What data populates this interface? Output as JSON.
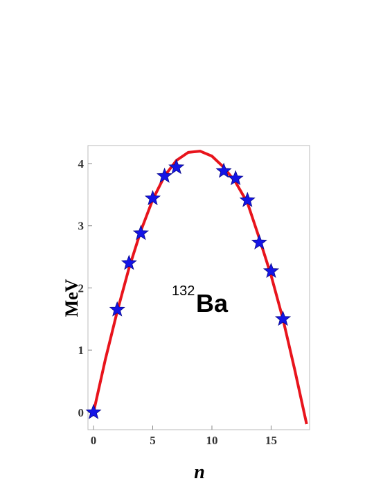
{
  "chart_data": {
    "type": "line",
    "x_label": "n",
    "y_label": "MeV",
    "annotation": {
      "superscript": "132",
      "text": "Ba"
    },
    "xlim": [
      -0.47,
      18.25
    ],
    "ylim": [
      -0.28,
      4.29
    ],
    "xticks": [
      0,
      5,
      10,
      15
    ],
    "yticks": [
      0,
      1,
      2,
      3,
      4
    ],
    "series": [
      {
        "type": "line",
        "color": "#e8141c",
        "x": [
          0,
          1,
          2,
          3,
          4,
          5,
          6,
          7,
          8,
          9,
          10,
          11,
          12,
          13,
          14,
          15,
          16,
          17,
          18
        ],
        "values": [
          0,
          0.85,
          1.62,
          2.32,
          2.92,
          3.42,
          3.8,
          4.05,
          4.18,
          4.2,
          4.12,
          3.94,
          3.7,
          3.37,
          2.8,
          2.2,
          1.5,
          0.68,
          -0.19
        ]
      },
      {
        "type": "scatter",
        "color": "#1414e6",
        "x": [
          0,
          2,
          3,
          4,
          5,
          6,
          7,
          11,
          12,
          13,
          14,
          15,
          16
        ],
        "values": [
          0,
          1.65,
          2.4,
          2.88,
          3.44,
          3.8,
          3.94,
          3.88,
          3.76,
          3.41,
          2.73,
          2.27,
          1.5
        ]
      }
    ]
  }
}
